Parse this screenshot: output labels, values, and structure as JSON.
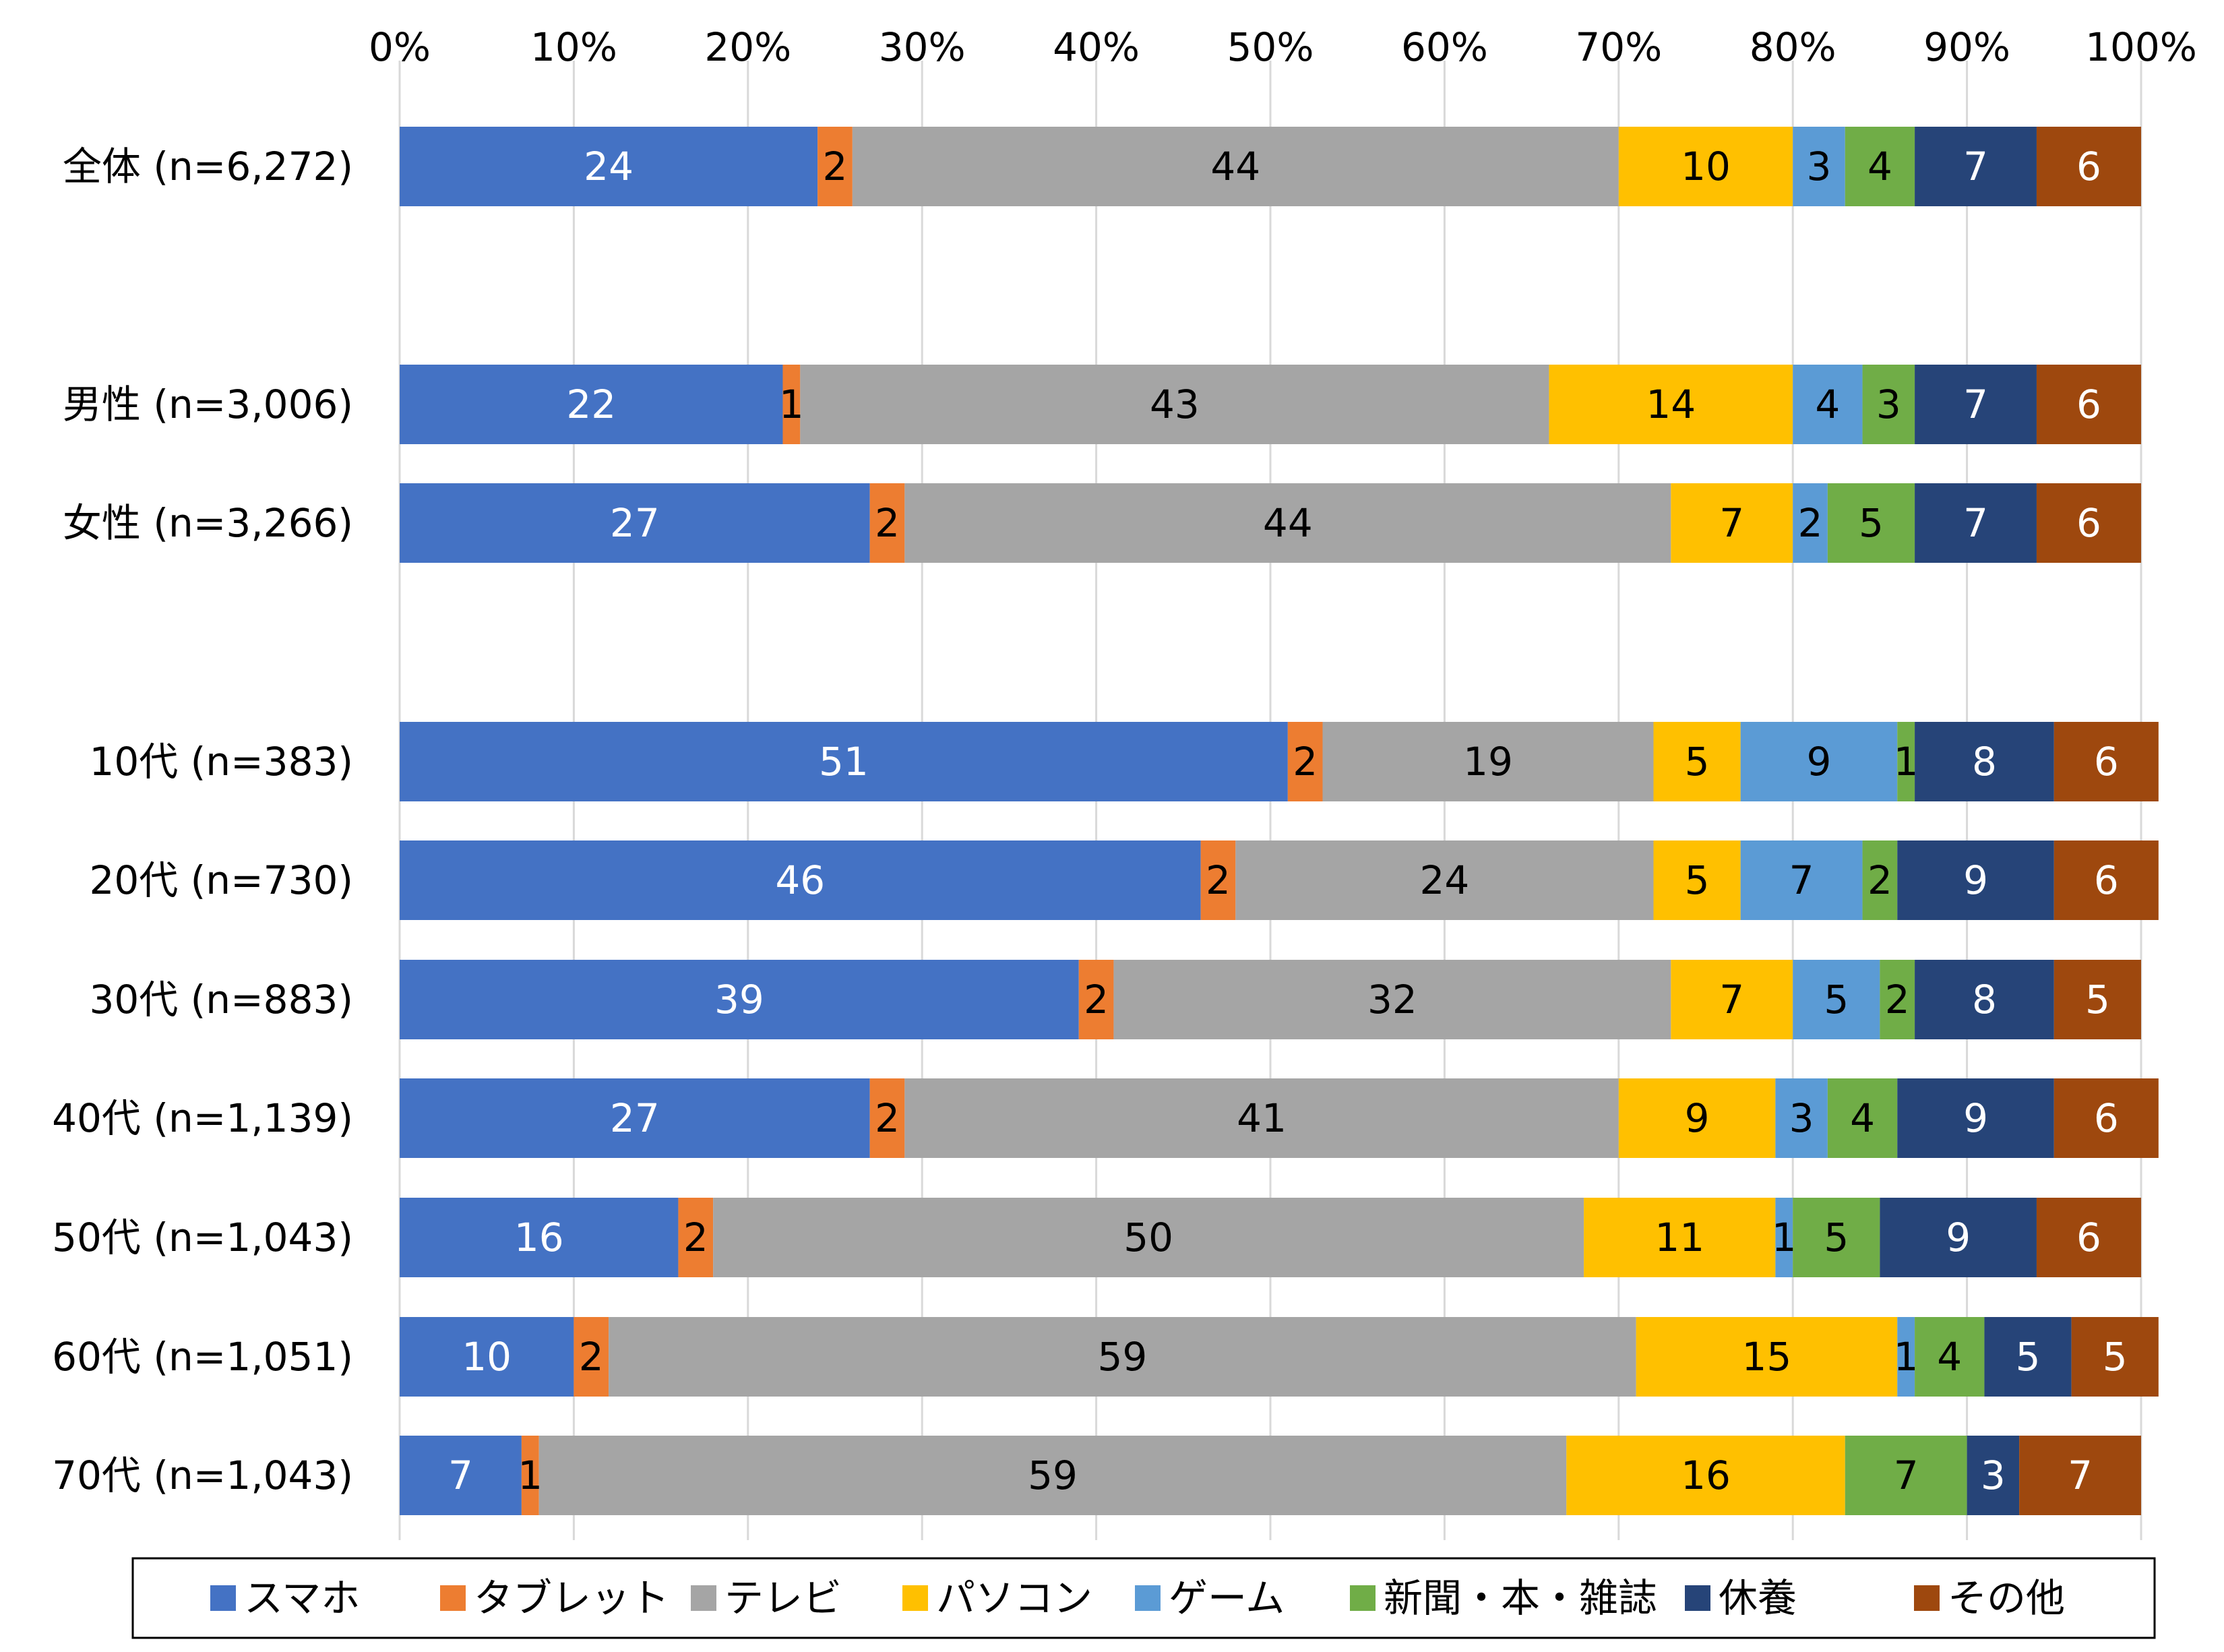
{
  "chart_data": {
    "type": "bar",
    "orientation": "horizontal",
    "stacked": true,
    "title": "",
    "xlabel": "",
    "ylabel": "",
    "xlim": [
      0,
      100
    ],
    "x_ticks": [
      "0%",
      "10%",
      "20%",
      "30%",
      "40%",
      "50%",
      "60%",
      "70%",
      "80%",
      "90%",
      "100%"
    ],
    "x_axis_position": "top",
    "grid": true,
    "legend_position": "bottom",
    "categories": [
      "全体 (n=6,272)",
      "男性 (n=3,006)",
      "女性 (n=3,266)",
      "10代 (n=383)",
      "20代 (n=730)",
      "30代 (n=883)",
      "40代 (n=1,139)",
      "50代 (n=1,043)",
      "60代 (n=1,051)",
      "70代 (n=1,043)"
    ],
    "series": [
      {
        "name": "スマホ",
        "color": "#4472C4",
        "label_color": "#ffffff",
        "values": [
          24,
          22,
          27,
          51,
          46,
          39,
          27,
          16,
          10,
          7
        ]
      },
      {
        "name": "タブレット",
        "color": "#ED7D31",
        "label_color": "#000000",
        "values": [
          2,
          1,
          2,
          2,
          2,
          2,
          2,
          2,
          2,
          1
        ]
      },
      {
        "name": "テレビ",
        "color": "#A5A5A5",
        "label_color": "#000000",
        "values": [
          44,
          43,
          44,
          19,
          24,
          32,
          41,
          50,
          59,
          59
        ]
      },
      {
        "name": "パソコン",
        "color": "#FFC000",
        "label_color": "#000000",
        "values": [
          10,
          14,
          7,
          5,
          5,
          7,
          9,
          11,
          15,
          16
        ]
      },
      {
        "name": "ゲーム",
        "color": "#5B9BD5",
        "label_color": "#000000",
        "values": [
          3,
          4,
          2,
          9,
          7,
          5,
          3,
          1,
          1,
          0
        ]
      },
      {
        "name": "新聞・本・雑誌",
        "color": "#70AD47",
        "label_color": "#000000",
        "values": [
          4,
          3,
          5,
          1,
          2,
          2,
          4,
          5,
          4,
          7
        ]
      },
      {
        "name": "休養",
        "color": "#264478",
        "label_color": "#ffffff",
        "values": [
          7,
          7,
          7,
          8,
          9,
          8,
          9,
          9,
          5,
          3
        ]
      },
      {
        "name": "その他",
        "color": "#9E480E",
        "label_color": "#ffffff",
        "values": [
          6,
          6,
          6,
          6,
          6,
          5,
          6,
          6,
          5,
          7
        ]
      }
    ]
  }
}
